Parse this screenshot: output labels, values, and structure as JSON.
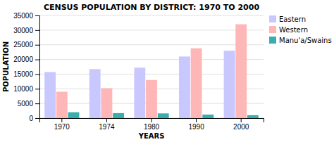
{
  "chart_data": {
    "type": "bar",
    "title": "CENSUS POPULATION BY DISTRICT:  1970 TO 2000",
    "xlabel": "YEARS",
    "ylabel": "POPULATION",
    "categories": [
      "1970",
      "1974",
      "1980",
      "1990",
      "2000"
    ],
    "series": [
      {
        "name": "Eastern",
        "color": "#c8c8ff",
        "values": [
          15700,
          16700,
          17200,
          21000,
          23000
        ]
      },
      {
        "name": "Western",
        "color": "#ffb6b6",
        "values": [
          9000,
          10200,
          13000,
          23800,
          32000
        ]
      },
      {
        "name": "Manu'a/Swains",
        "color": "#3aadad",
        "values": [
          2000,
          1700,
          1600,
          1200,
          1000
        ]
      }
    ],
    "ylim": [
      0,
      35000
    ],
    "yticks": [
      0,
      5000,
      10000,
      15000,
      20000,
      25000,
      30000,
      35000
    ],
    "grid": true,
    "legend": "upper right"
  }
}
